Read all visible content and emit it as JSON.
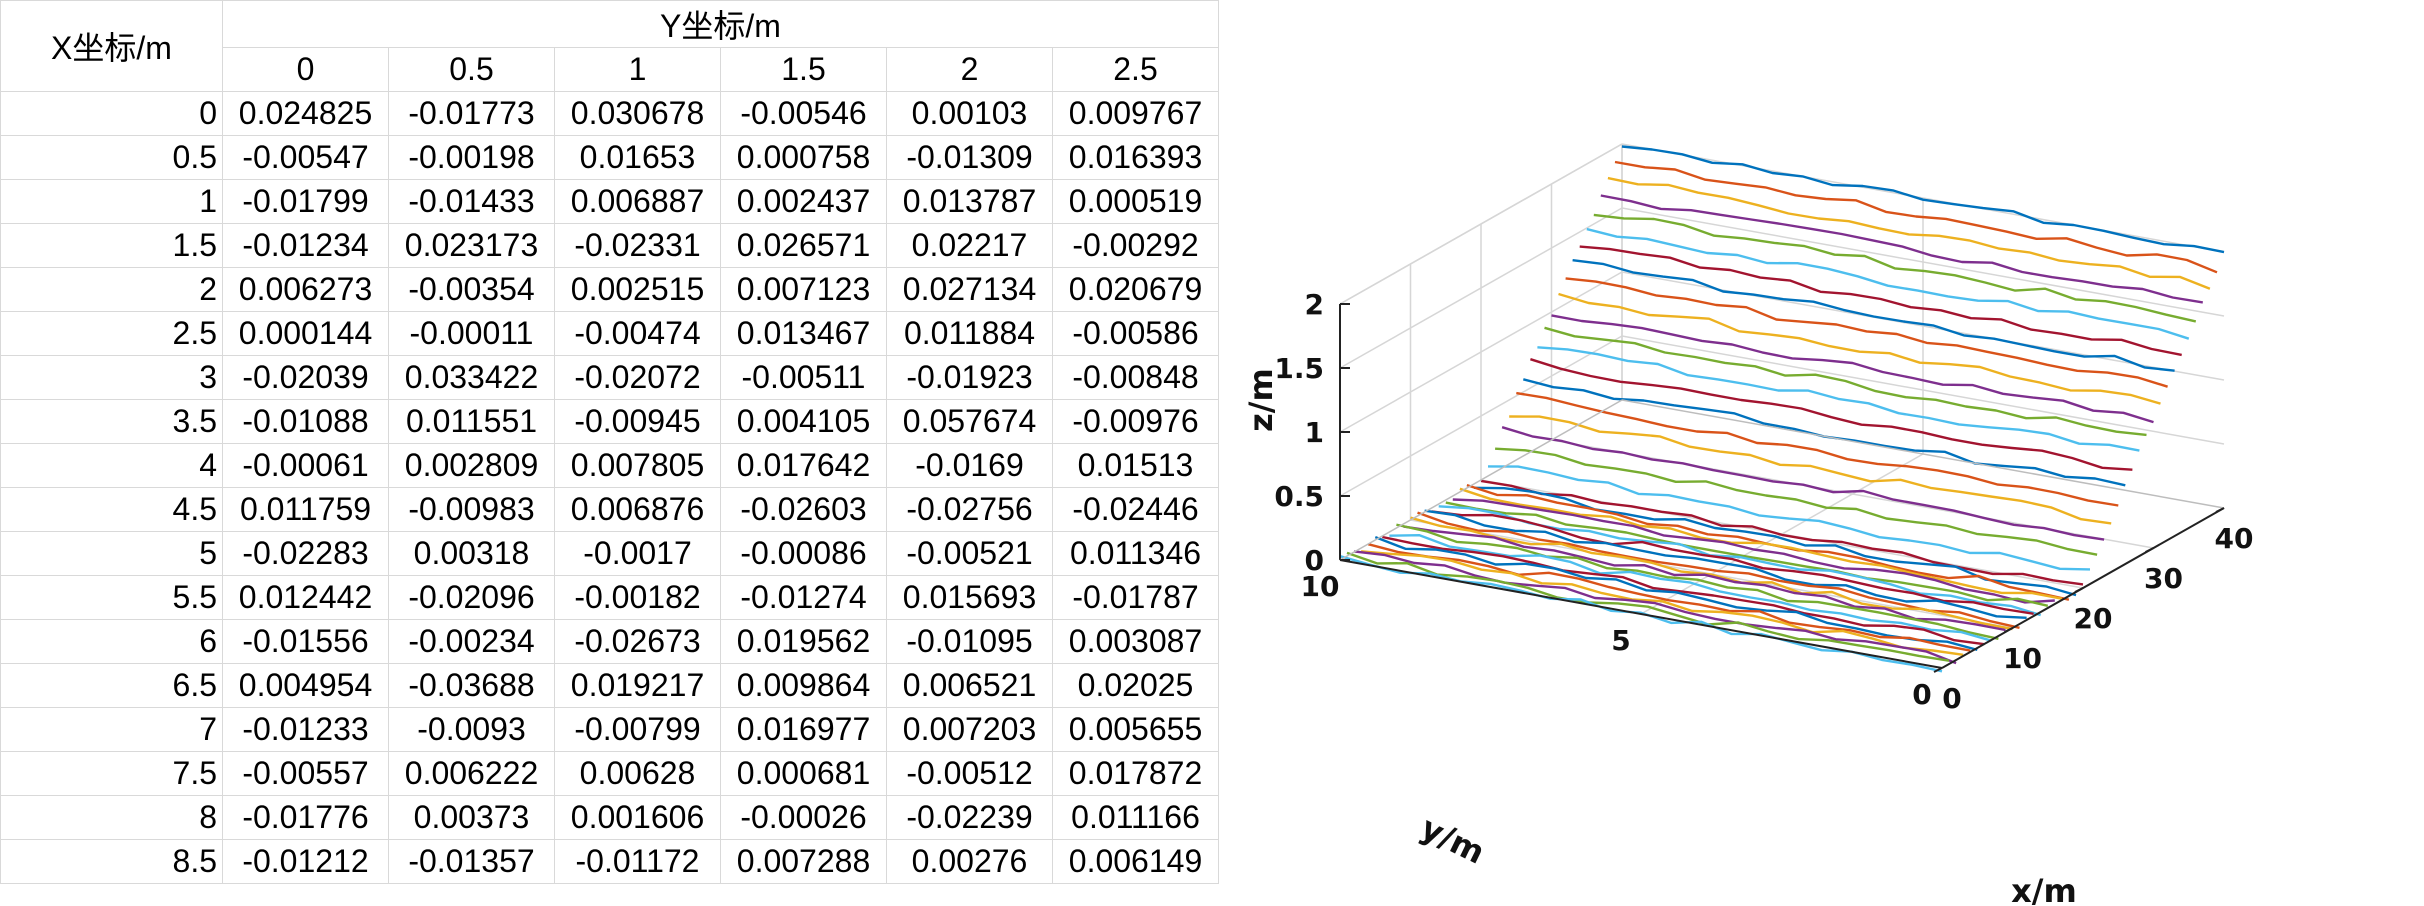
{
  "table": {
    "corner_label": "X坐标/m",
    "y_header": "Y坐标/m",
    "col_headers": [
      "0",
      "0.5",
      "1",
      "1.5",
      "2",
      "2.5"
    ],
    "rows": [
      {
        "x": "0",
        "cells": [
          "0.024825",
          "-0.01773",
          "0.030678",
          "-0.00546",
          "0.00103",
          "0.009767"
        ]
      },
      {
        "x": "0.5",
        "cells": [
          "-0.00547",
          "-0.00198",
          "0.01653",
          "0.000758",
          "-0.01309",
          "0.016393"
        ]
      },
      {
        "x": "1",
        "cells": [
          "-0.01799",
          "-0.01433",
          "0.006887",
          "0.002437",
          "0.013787",
          "0.000519"
        ]
      },
      {
        "x": "1.5",
        "cells": [
          "-0.01234",
          "0.023173",
          "-0.02331",
          "0.026571",
          "0.02217",
          "-0.00292"
        ]
      },
      {
        "x": "2",
        "cells": [
          "0.006273",
          "-0.00354",
          "0.002515",
          "0.007123",
          "0.027134",
          "0.020679"
        ]
      },
      {
        "x": "2.5",
        "cells": [
          "0.000144",
          "-0.00011",
          "-0.00474",
          "0.013467",
          "0.011884",
          "-0.00586"
        ]
      },
      {
        "x": "3",
        "cells": [
          "-0.02039",
          "0.033422",
          "-0.02072",
          "-0.00511",
          "-0.01923",
          "-0.00848"
        ]
      },
      {
        "x": "3.5",
        "cells": [
          "-0.01088",
          "0.011551",
          "-0.00945",
          "0.004105",
          "0.057674",
          "-0.00976"
        ]
      },
      {
        "x": "4",
        "cells": [
          "-0.00061",
          "0.002809",
          "0.007805",
          "0.017642",
          "-0.0169",
          "0.01513"
        ]
      },
      {
        "x": "4.5",
        "cells": [
          "0.011759",
          "-0.00983",
          "0.006876",
          "-0.02603",
          "-0.02756",
          "-0.02446"
        ]
      },
      {
        "x": "5",
        "cells": [
          "-0.02283",
          "0.00318",
          "-0.0017",
          "-0.00086",
          "-0.00521",
          "0.011346"
        ]
      },
      {
        "x": "5.5",
        "cells": [
          "0.012442",
          "-0.02096",
          "-0.00182",
          "-0.01274",
          "0.015693",
          "-0.01787"
        ]
      },
      {
        "x": "6",
        "cells": [
          "-0.01556",
          "-0.00234",
          "-0.02673",
          "0.019562",
          "-0.01095",
          "0.003087"
        ]
      },
      {
        "x": "6.5",
        "cells": [
          "0.004954",
          "-0.03688",
          "0.019217",
          "0.009864",
          "0.006521",
          "0.02025"
        ]
      },
      {
        "x": "7",
        "cells": [
          "-0.01233",
          "-0.0093",
          "-0.00799",
          "0.016977",
          "0.007203",
          "0.005655"
        ]
      },
      {
        "x": "7.5",
        "cells": [
          "-0.00557",
          "0.006222",
          "0.00628",
          "0.000681",
          "-0.00512",
          "0.017872"
        ]
      },
      {
        "x": "8",
        "cells": [
          "-0.01776",
          "0.00373",
          "0.001606",
          "-0.00026",
          "-0.02239",
          "0.011166"
        ]
      },
      {
        "x": "8.5",
        "cells": [
          "-0.01212",
          "-0.01357",
          "-0.01172",
          "0.007288",
          "0.00276",
          "0.006149"
        ]
      }
    ]
  },
  "chart_data": {
    "type": "line",
    "view": "3d-surface-profile",
    "xlabel": "x/m",
    "ylabel": "y/m",
    "zlabel": "z/m",
    "xlim": [
      0,
      40
    ],
    "ylim": [
      0,
      10
    ],
    "zlim": [
      0,
      2
    ],
    "xticks": [
      "0",
      "10",
      "20",
      "30",
      "40"
    ],
    "yticks": [
      "0",
      "5",
      "10"
    ],
    "zticks": [
      "0",
      "0.5",
      "1",
      "1.5",
      "2"
    ],
    "grid": true,
    "profile": {
      "x_step": 0.5,
      "flat_until_x": 20,
      "slope_dz_dx": 0.1,
      "noise_amplitude": 0.03
    },
    "line_colors": [
      "#0072bd",
      "#d95319",
      "#edb120",
      "#7e2f8e",
      "#77ac30",
      "#4dbeee",
      "#a2142f"
    ]
  }
}
